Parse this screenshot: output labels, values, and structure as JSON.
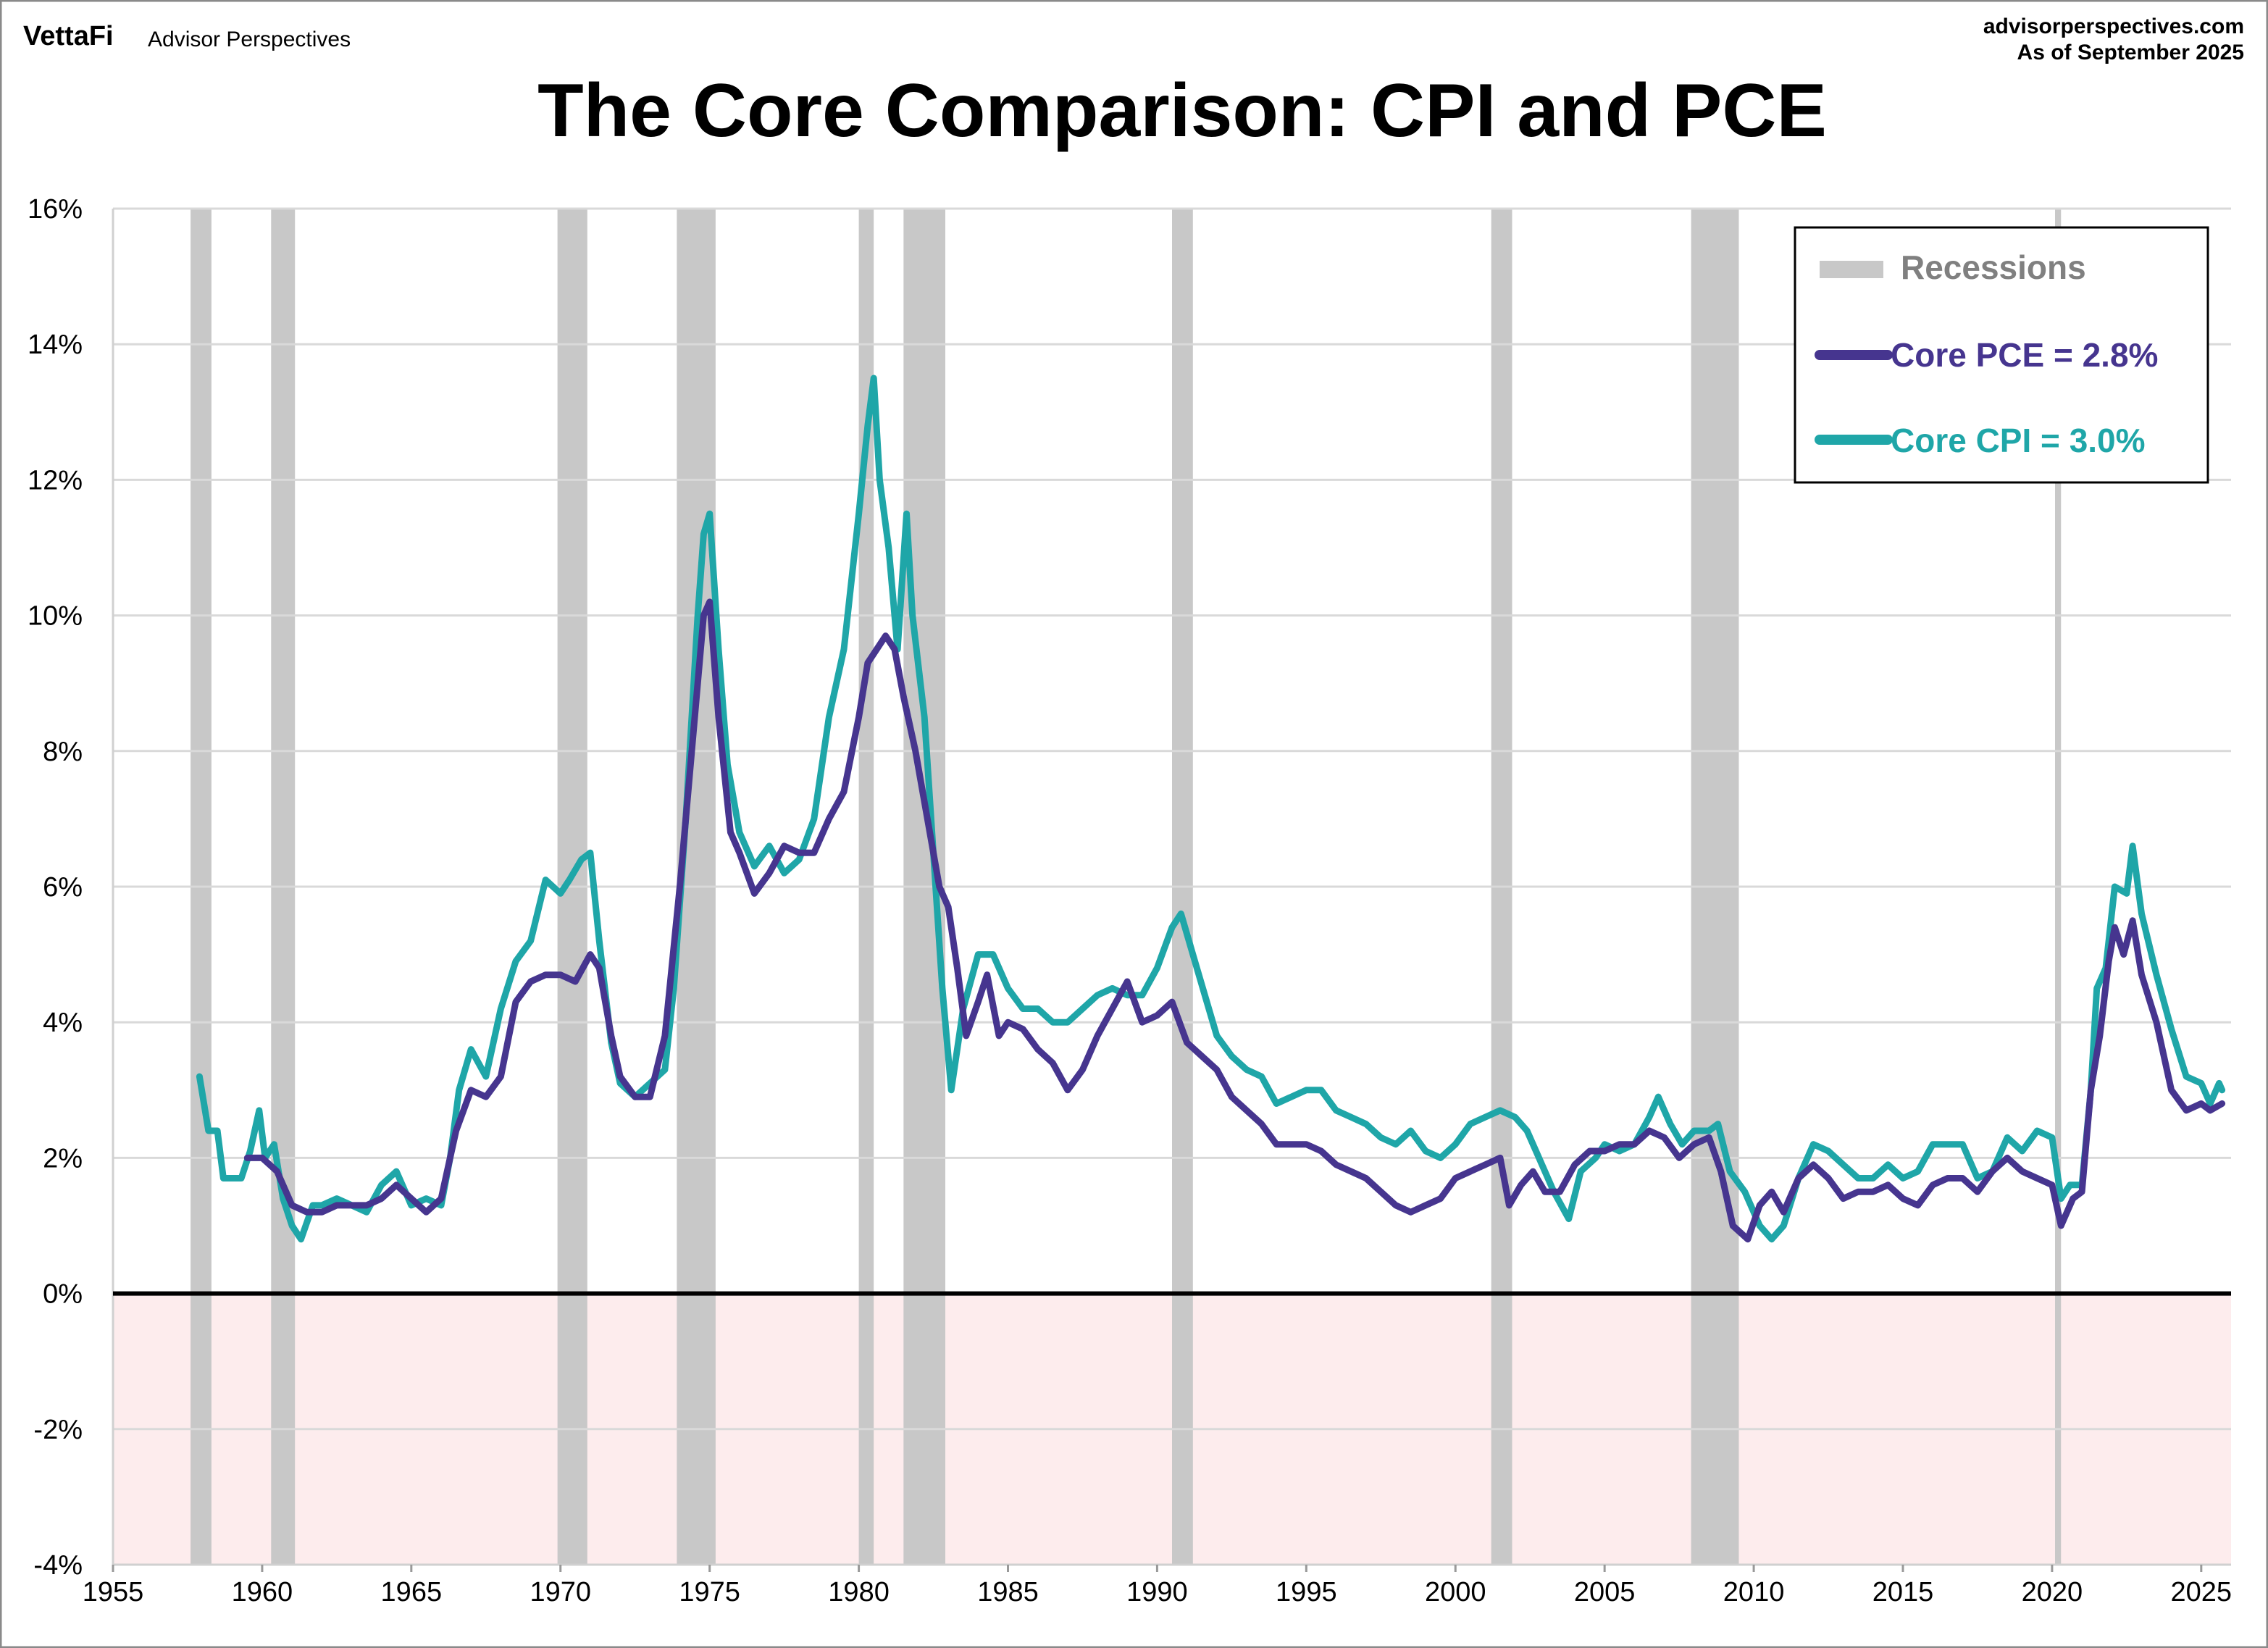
{
  "header": {
    "brand_logo": "VettaFi",
    "brand_name": "Advisor Perspectives",
    "site": "advisorperspectives.com",
    "as_of": "As of September 2025"
  },
  "colors": {
    "core_pce": "#46358f",
    "core_cpi": "#1fa6a8",
    "recession": "#c8c8c8",
    "negative_zone": "#fdeced",
    "grid": "#d9d9d9"
  },
  "chart_data": {
    "type": "line",
    "title": "The Core Comparison: CPI and PCE",
    "xlabel": "",
    "ylabel": "",
    "xlim": [
      1955,
      2026
    ],
    "ylim": [
      -4,
      16
    ],
    "x_ticks": [
      1955,
      1960,
      1965,
      1970,
      1975,
      1980,
      1985,
      1990,
      1995,
      2000,
      2005,
      2010,
      2015,
      2020,
      2025
    ],
    "y_ticks": [
      -4,
      -2,
      0,
      2,
      4,
      6,
      8,
      10,
      12,
      14,
      16
    ],
    "y_tick_labels": [
      "-4%",
      "-2%",
      "0%",
      "2%",
      "4%",
      "6%",
      "8%",
      "10%",
      "12%",
      "14%",
      "16%"
    ],
    "grid": "horizontal",
    "legend_placement": "top-right",
    "legend": {
      "recessions": "Recessions",
      "pce": "Core PCE = 2.8%",
      "cpi": "Core CPI =  3.0%"
    },
    "recessions": [
      [
        1957.6,
        1958.3
      ],
      [
        1960.3,
        1961.1
      ],
      [
        1969.9,
        1970.9
      ],
      [
        1973.9,
        1975.2
      ],
      [
        1980.0,
        1980.5
      ],
      [
        1981.5,
        1982.9
      ],
      [
        1990.5,
        1991.2
      ],
      [
        2001.2,
        2001.9
      ],
      [
        2007.9,
        2009.5
      ],
      [
        2020.1,
        2020.3
      ]
    ],
    "series": [
      {
        "name": "Core PCE",
        "x": [
          1959.5,
          1960,
          1960.5,
          1961,
          1961.5,
          1962,
          1962.5,
          1963,
          1963.5,
          1964,
          1964.5,
          1965,
          1965.5,
          1966,
          1966.5,
          1967,
          1967.5,
          1968,
          1968.5,
          1969,
          1969.5,
          1970,
          1970.5,
          1971,
          1971.3,
          1971.7,
          1972,
          1972.5,
          1973,
          1973.5,
          1974,
          1974.5,
          1974.8,
          1975,
          1975.3,
          1975.7,
          1976,
          1976.5,
          1977,
          1977.5,
          1978,
          1978.5,
          1979,
          1979.5,
          1980,
          1980.3,
          1980.6,
          1980.9,
          1981.2,
          1981.5,
          1981.9,
          1982.3,
          1982.7,
          1983,
          1983.3,
          1983.6,
          1984,
          1984.3,
          1984.7,
          1985,
          1985.5,
          1986,
          1986.5,
          1987,
          1987.5,
          1988,
          1988.5,
          1989,
          1989.5,
          1990,
          1990.5,
          1991,
          1991.5,
          1992,
          1992.5,
          1993,
          1993.5,
          1994,
          1994.5,
          1995,
          1995.5,
          1996,
          1996.5,
          1997,
          1997.5,
          1998,
          1998.5,
          1999,
          1999.5,
          2000,
          2000.5,
          2001,
          2001.5,
          2001.8,
          2002.2,
          2002.6,
          2003,
          2003.5,
          2004,
          2004.5,
          2005,
          2005.5,
          2006,
          2006.5,
          2007,
          2007.5,
          2008,
          2008.5,
          2008.9,
          2009.3,
          2009.8,
          2010.2,
          2010.6,
          2011,
          2011.5,
          2012,
          2012.5,
          2013,
          2013.5,
          2014,
          2014.5,
          2015,
          2015.5,
          2016,
          2016.5,
          2017,
          2017.5,
          2018,
          2018.5,
          2019,
          2019.5,
          2020,
          2020.3,
          2020.7,
          2021,
          2021.3,
          2021.6,
          2021.9,
          2022.1,
          2022.4,
          2022.7,
          2023,
          2023.5,
          2024,
          2024.5,
          2025,
          2025.3,
          2025.7
        ],
        "values": [
          2.0,
          2.0,
          1.8,
          1.3,
          1.2,
          1.2,
          1.3,
          1.3,
          1.3,
          1.4,
          1.6,
          1.4,
          1.2,
          1.4,
          2.4,
          3.0,
          2.9,
          3.2,
          4.3,
          4.6,
          4.7,
          4.7,
          4.6,
          5.0,
          4.8,
          3.8,
          3.2,
          2.9,
          2.9,
          3.8,
          6.0,
          8.5,
          10.0,
          10.2,
          8.5,
          6.8,
          6.5,
          5.9,
          6.2,
          6.6,
          6.5,
          6.5,
          7.0,
          7.4,
          8.5,
          9.3,
          9.5,
          9.7,
          9.5,
          8.8,
          8.0,
          7.0,
          6.0,
          5.7,
          4.8,
          3.8,
          4.3,
          4.7,
          3.8,
          4.0,
          3.9,
          3.6,
          3.4,
          3.0,
          3.3,
          3.8,
          4.2,
          4.6,
          4.0,
          4.1,
          4.3,
          3.7,
          3.5,
          3.3,
          2.9,
          2.7,
          2.5,
          2.2,
          2.2,
          2.2,
          2.1,
          1.9,
          1.8,
          1.7,
          1.5,
          1.3,
          1.2,
          1.3,
          1.4,
          1.7,
          1.8,
          1.9,
          2.0,
          1.3,
          1.6,
          1.8,
          1.5,
          1.5,
          1.9,
          2.1,
          2.1,
          2.2,
          2.2,
          2.4,
          2.3,
          2.0,
          2.2,
          2.3,
          1.8,
          1.0,
          0.8,
          1.3,
          1.5,
          1.2,
          1.7,
          1.9,
          1.7,
          1.4,
          1.5,
          1.5,
          1.6,
          1.4,
          1.3,
          1.6,
          1.7,
          1.7,
          1.5,
          1.8,
          2.0,
          1.8,
          1.7,
          1.6,
          1.0,
          1.4,
          1.5,
          3.0,
          3.8,
          4.9,
          5.4,
          5.0,
          5.5,
          4.7,
          4.0,
          3.0,
          2.7,
          2.8,
          2.7,
          2.8
        ]
      },
      {
        "name": "Core CPI",
        "x": [
          1957.9,
          1958.2,
          1958.5,
          1958.7,
          1959.3,
          1959.6,
          1959.9,
          1960.1,
          1960.4,
          1960.7,
          1961,
          1961.3,
          1961.7,
          1962,
          1962.5,
          1963,
          1963.5,
          1964,
          1964.5,
          1965,
          1965.5,
          1966,
          1966.3,
          1966.6,
          1967,
          1967.5,
          1968,
          1968.5,
          1969,
          1969.5,
          1970,
          1970.3,
          1970.7,
          1971,
          1971.3,
          1971.7,
          1972,
          1972.5,
          1973,
          1973.5,
          1973.8,
          1974.2,
          1974.6,
          1974.8,
          1975,
          1975.3,
          1975.6,
          1976,
          1976.5,
          1977,
          1977.5,
          1978,
          1978.5,
          1979,
          1979.5,
          1980,
          1980.3,
          1980.5,
          1980.7,
          1981,
          1981.3,
          1981.6,
          1981.8,
          1982.2,
          1982.5,
          1982.8,
          1983.1,
          1983.5,
          1984,
          1984.5,
          1985,
          1985.5,
          1986,
          1986.5,
          1987,
          1987.5,
          1988,
          1988.5,
          1989,
          1989.5,
          1990,
          1990.5,
          1990.8,
          1991.2,
          1991.6,
          1992,
          1992.5,
          1993,
          1993.5,
          1994,
          1994.5,
          1995,
          1995.5,
          1996,
          1996.5,
          1997,
          1997.5,
          1998,
          1998.5,
          1999,
          1999.5,
          2000,
          2000.5,
          2001,
          2001.5,
          2002,
          2002.4,
          2002.8,
          2003.3,
          2003.8,
          2004.2,
          2004.7,
          2005,
          2005.5,
          2006,
          2006.5,
          2006.8,
          2007.2,
          2007.6,
          2008,
          2008.5,
          2008.8,
          2009.2,
          2009.7,
          2010.2,
          2010.6,
          2011,
          2011.5,
          2012,
          2012.5,
          2013,
          2013.5,
          2014,
          2014.5,
          2015,
          2015.5,
          2016,
          2016.5,
          2017,
          2017.5,
          2018,
          2018.5,
          2019,
          2019.5,
          2020,
          2020.3,
          2020.6,
          2021,
          2021.3,
          2021.5,
          2021.8,
          2022.1,
          2022.5,
          2022.7,
          2023,
          2023.5,
          2024,
          2024.5,
          2025,
          2025.3,
          2025.6,
          2025.7
        ],
        "values": [
          3.2,
          2.4,
          2.4,
          1.7,
          1.7,
          2.1,
          2.7,
          2.0,
          2.2,
          1.4,
          1.0,
          0.8,
          1.3,
          1.3,
          1.4,
          1.3,
          1.2,
          1.6,
          1.8,
          1.3,
          1.4,
          1.3,
          2.0,
          3.0,
          3.6,
          3.2,
          4.2,
          4.9,
          5.2,
          6.1,
          5.9,
          6.1,
          6.4,
          6.5,
          5.2,
          3.7,
          3.1,
          2.9,
          3.1,
          3.3,
          4.5,
          7.0,
          10.0,
          11.2,
          11.5,
          9.5,
          7.8,
          6.8,
          6.3,
          6.6,
          6.2,
          6.4,
          7.0,
          8.5,
          9.5,
          11.5,
          12.8,
          13.5,
          12.0,
          11.0,
          9.5,
          11.5,
          10.0,
          8.5,
          6.5,
          4.5,
          3.0,
          4.2,
          5.0,
          5.0,
          4.5,
          4.2,
          4.2,
          4.0,
          4.0,
          4.2,
          4.4,
          4.5,
          4.4,
          4.4,
          4.8,
          5.4,
          5.6,
          5.0,
          4.4,
          3.8,
          3.5,
          3.3,
          3.2,
          2.8,
          2.9,
          3.0,
          3.0,
          2.7,
          2.6,
          2.5,
          2.3,
          2.2,
          2.4,
          2.1,
          2.0,
          2.2,
          2.5,
          2.6,
          2.7,
          2.6,
          2.4,
          2.0,
          1.5,
          1.1,
          1.8,
          2.0,
          2.2,
          2.1,
          2.2,
          2.6,
          2.9,
          2.5,
          2.2,
          2.4,
          2.4,
          2.5,
          1.8,
          1.5,
          1.0,
          0.8,
          1.0,
          1.7,
          2.2,
          2.1,
          1.9,
          1.7,
          1.7,
          1.9,
          1.7,
          1.8,
          2.2,
          2.2,
          2.2,
          1.7,
          1.8,
          2.3,
          2.1,
          2.4,
          2.3,
          1.4,
          1.6,
          1.6,
          3.0,
          4.5,
          4.8,
          6.0,
          5.9,
          6.6,
          5.6,
          4.7,
          3.9,
          3.2,
          3.1,
          2.8,
          3.1,
          3.0
        ]
      }
    ]
  }
}
